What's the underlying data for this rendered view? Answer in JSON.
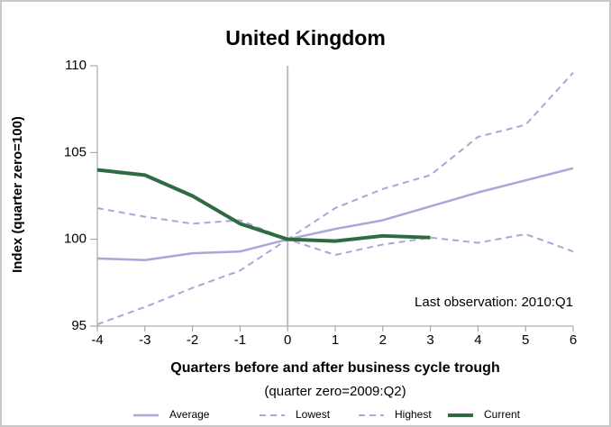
{
  "chart_data": {
    "type": "line",
    "title": "United Kingdom",
    "ylabel": "Index (quarter zero=100)",
    "xlabel": "Quarters before and after business cycle trough",
    "subtitle": "(quarter zero=2009:Q2)",
    "annotation": "Last observation: 2010:Q1",
    "x": [
      -4,
      -3,
      -2,
      -1,
      0,
      1,
      2,
      3,
      4,
      5,
      6
    ],
    "series": [
      {
        "name": "Average",
        "color": "#aaa6d6",
        "style": "solid",
        "values": [
          98.9,
          98.8,
          99.2,
          99.3,
          100,
          100.6,
          101.1,
          101.9,
          102.7,
          103.4,
          104.1
        ]
      },
      {
        "name": "Lowest",
        "color": "#aaa6d6",
        "style": "dashed",
        "values": [
          95.1,
          96.1,
          97.2,
          98.2,
          100,
          99.1,
          99.7,
          100.1,
          99.8,
          100.3,
          99.3
        ]
      },
      {
        "name": "Highest",
        "color": "#aaa6d6",
        "style": "dashed",
        "values": [
          101.8,
          101.3,
          100.9,
          101.1,
          100,
          101.8,
          102.9,
          103.7,
          105.9,
          106.6,
          109.6
        ]
      },
      {
        "name": "Current",
        "color": "#2e6b45",
        "style": "bold",
        "values": [
          104,
          103.7,
          102.5,
          100.9,
          100,
          99.9,
          100.2,
          100.1,
          null,
          null,
          null
        ]
      }
    ],
    "xlim": [
      -4,
      6
    ],
    "xticks": [
      -4,
      -3,
      -2,
      -1,
      0,
      1,
      2,
      3,
      4,
      5,
      6
    ],
    "ylim": [
      95,
      110
    ],
    "yticks": [
      95,
      100,
      105,
      110
    ]
  }
}
